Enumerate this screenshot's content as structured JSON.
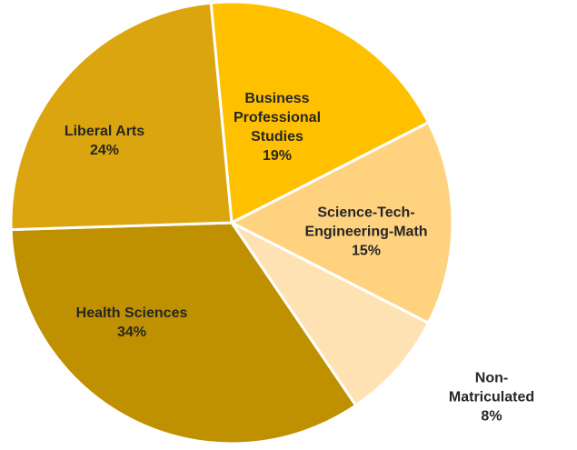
{
  "chart_data": {
    "type": "pie",
    "categories": [
      "Business\nProfessional\nStudies",
      "Science-Tech-\nEngineering-Math",
      "Non-Matriculated",
      "Health Sciences",
      "Liberal Arts"
    ],
    "values": [
      19,
      15,
      8,
      34,
      24
    ],
    "value_labels": [
      "19%",
      "15%",
      "8%",
      "34%",
      "24%"
    ],
    "colors": [
      "#FFC000",
      "#FFD280",
      "#FFE2B4",
      "#BF9000",
      "#DAA50E"
    ]
  }
}
